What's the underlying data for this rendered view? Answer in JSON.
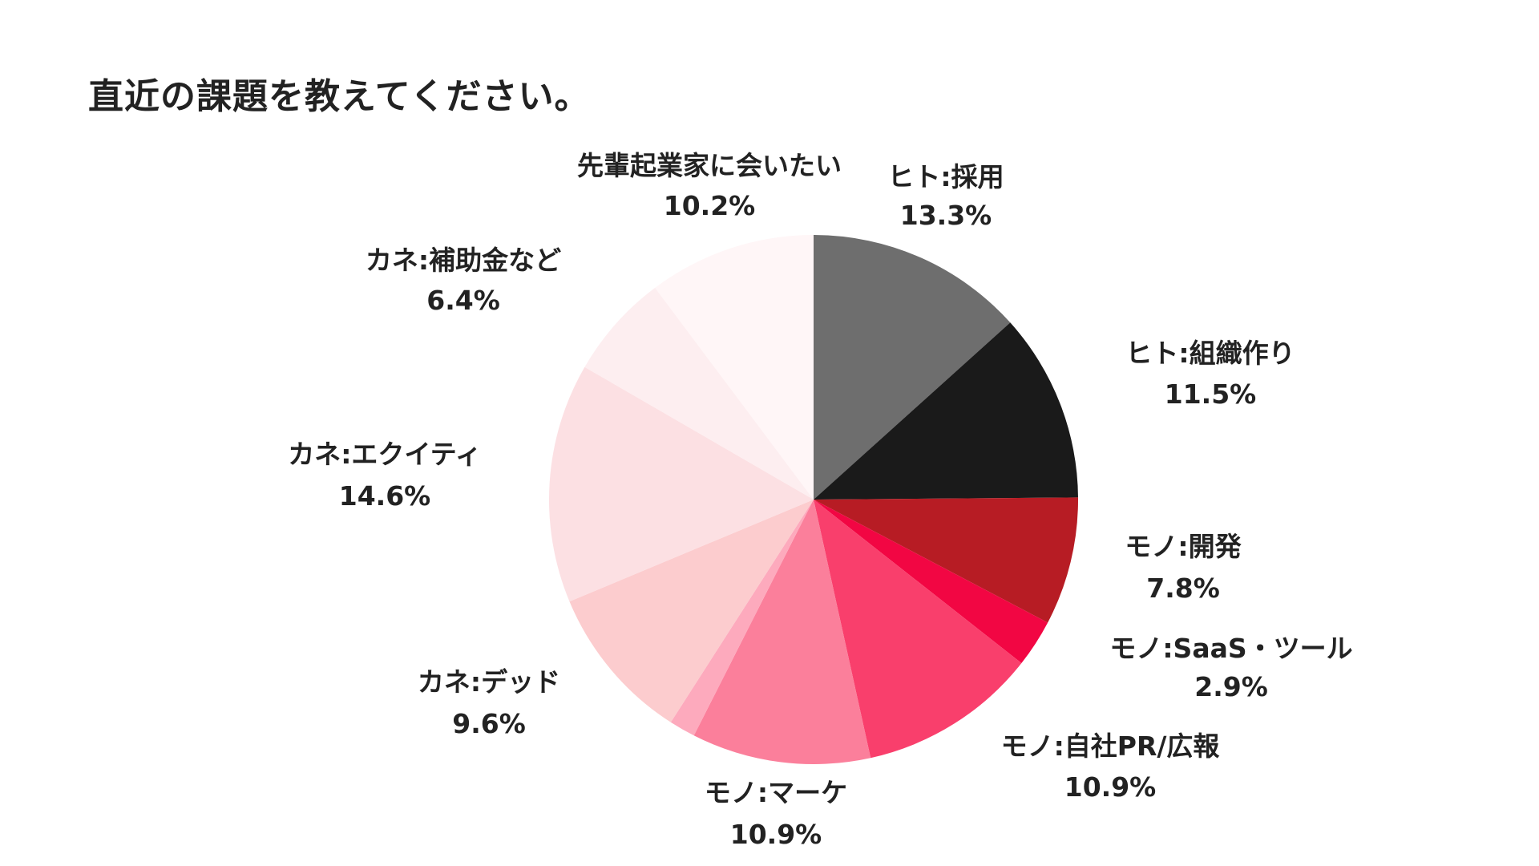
{
  "chart_data": {
    "type": "pie",
    "title": "直近の課題を教えてください。",
    "start_angle_deg": 0,
    "direction": "clockwise",
    "slices": [
      {
        "label": "ヒト:採用",
        "value": 13.3,
        "value_label": "13.3%",
        "color": "#6e6e6e"
      },
      {
        "label": "ヒト:組織作り",
        "value": 11.5,
        "value_label": "11.5%",
        "color": "#1a1a1a"
      },
      {
        "label": "モノ:開発",
        "value": 7.8,
        "value_label": "7.8%",
        "color": "#b71c24"
      },
      {
        "label": "モノ:SaaS・ツール",
        "value": 2.9,
        "value_label": "2.9%",
        "color": "#f20643"
      },
      {
        "label": "モノ:自社PR/広報",
        "value": 10.9,
        "value_label": "10.9%",
        "color": "#f93f6c"
      },
      {
        "label": "モノ:マーケ",
        "value": 10.9,
        "value_label": "10.9%",
        "color": "#fb7f9b"
      },
      {
        "label": "",
        "value": 1.6,
        "value_label": "",
        "color": "#fdaabd"
      },
      {
        "label": "カネ:デッド",
        "value": 9.6,
        "value_label": "9.6%",
        "color": "#fcccce"
      },
      {
        "label": "カネ:エクイティ",
        "value": 14.6,
        "value_label": "14.6%",
        "color": "#fce0e3"
      },
      {
        "label": "カネ:補助金など",
        "value": 6.4,
        "value_label": "6.4%",
        "color": "#fdeef0"
      },
      {
        "label": "先輩起業家に会いたい",
        "value": 10.2,
        "value_label": "10.2%",
        "color": "#fff6f7"
      }
    ]
  }
}
